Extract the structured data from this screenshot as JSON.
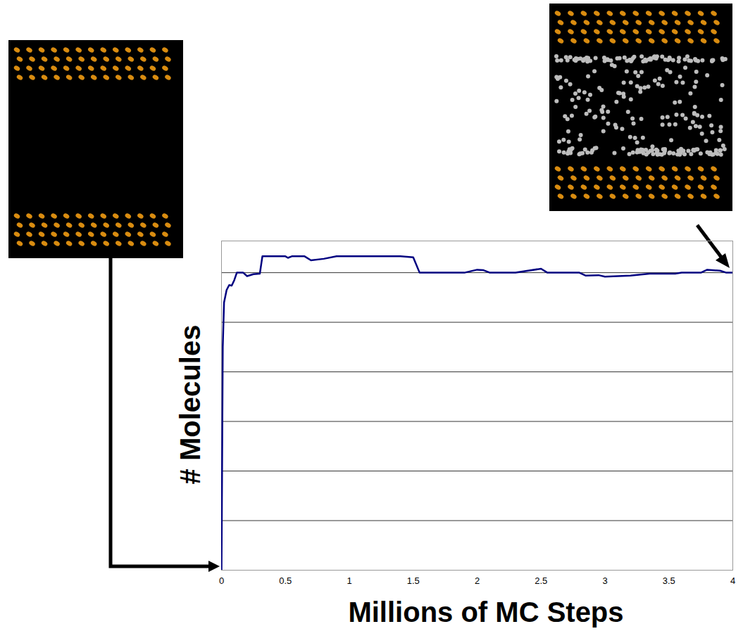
{
  "chart_data": {
    "type": "line",
    "x_label": "Millions of MC Steps",
    "y_label": "# Molecules",
    "x": [
      0,
      0.01,
      0.02,
      0.04,
      0.06,
      0.08,
      0.1,
      0.12,
      0.17,
      0.2,
      0.25,
      0.3,
      0.32,
      0.5,
      0.52,
      0.55,
      0.65,
      0.7,
      0.8,
      0.9,
      1.4,
      1.5,
      1.55,
      1.9,
      2.0,
      2.05,
      2.1,
      2.3,
      2.5,
      2.55,
      2.8,
      2.85,
      2.95,
      3.0,
      3.2,
      3.35,
      3.55,
      3.6,
      3.75,
      3.8,
      3.9,
      3.95,
      4.0
    ],
    "series": [
      {
        "name": "# Molecules",
        "color": "#000080",
        "values": [
          0,
          4.5,
          5.4,
          5.65,
          5.75,
          5.74,
          5.85,
          6.0,
          6.0,
          5.93,
          5.97,
          5.98,
          6.33,
          6.33,
          6.3,
          6.33,
          6.33,
          6.25,
          6.28,
          6.33,
          6.33,
          6.31,
          6.0,
          6.0,
          6.06,
          6.05,
          6.0,
          6.0,
          6.08,
          6.0,
          6.0,
          5.94,
          5.95,
          5.92,
          5.94,
          5.98,
          5.98,
          6.0,
          6.0,
          6.06,
          6.04,
          6.0,
          6.0
        ]
      }
    ],
    "xlim": [
      0,
      4
    ],
    "xticks": [
      0,
      0.5,
      1,
      1.5,
      2,
      2.5,
      3,
      3.5,
      4
    ],
    "ylim": [
      0,
      6.64
    ],
    "yticks": [
      0,
      1,
      2,
      3,
      4,
      5,
      6
    ],
    "grid": true,
    "tick_labels": "x"
  }
}
